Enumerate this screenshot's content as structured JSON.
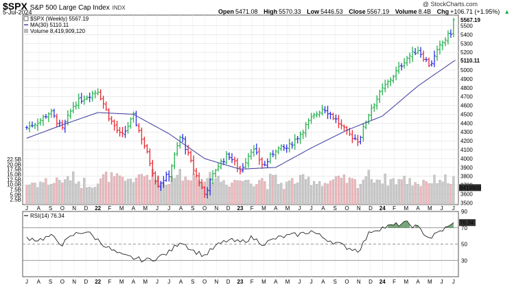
{
  "header": {
    "symbol": "$SPX",
    "name": "S&P 500 Large Cap Index",
    "exchange": "INDX",
    "date": "5-Jul-2024",
    "credit": "@ StockCharts.com",
    "open_label": "Open",
    "open": "5471.08",
    "high_label": "High",
    "high": "5570.33",
    "low_label": "Low",
    "low": "5446.53",
    "close_label": "Close",
    "close": "5567.19",
    "volume_label": "Volume",
    "volume": "8.4B",
    "chg_label": "Chg",
    "chg": "+106.71 (+1.95%)",
    "up_icon": "up-triangle-icon"
  },
  "legend": {
    "price": "$SPX (Weekly) 5567.19",
    "ma": "MA(30) 5110.11",
    "volume": "Volume 8,419,909,120",
    "rsi": "RSI(14) 76.34"
  },
  "colors": {
    "up": "#22b14c",
    "down": "#e8262f",
    "neutral": "#2a2ae6",
    "ma": "#4a47a3",
    "volume_up": "#c9c9c9",
    "volume_down": "#f0b8bd",
    "rsi_fill": "#4c8a4c",
    "close_tag": "#000000",
    "ma_tag": "#4a47a3"
  },
  "chart_data": [
    {
      "type": "bar",
      "subtype": "ohlc-weekly",
      "title": "$SPX (Weekly) 5567.19",
      "ylim": [
        3480,
        5620
      ],
      "price_ticks": [
        3500,
        3600,
        3700,
        3800,
        3900,
        4000,
        4100,
        4200,
        4300,
        4400,
        4500,
        4600,
        4700,
        4800,
        4900,
        5000,
        5100,
        5200,
        5300,
        5400,
        5500
      ],
      "volume_ticks": [
        "2.5B",
        "5.0B",
        "7.5B",
        "10.0B",
        "12.5B",
        "15.0B",
        "17.5B",
        "20.0B",
        "22.5B"
      ],
      "x_labels": [
        "J",
        "A",
        "S",
        "O",
        "N",
        "D",
        "22",
        "F",
        "M",
        "A",
        "M",
        "J",
        "J",
        "A",
        "S",
        "O",
        "N",
        "D",
        "23",
        "F",
        "M",
        "A",
        "M",
        "J",
        "J",
        "A",
        "S",
        "O",
        "N",
        "D",
        "24",
        "F",
        "M",
        "A",
        "M",
        "J",
        "J"
      ],
      "close_path": [
        [
          "2021-07",
          4350
        ],
        [
          "2021-08",
          4420
        ],
        [
          "2021-09",
          4530
        ],
        [
          "2021-10",
          4330
        ],
        [
          "2021-11",
          4620
        ],
        [
          "2021-12",
          4700
        ],
        [
          "2022-01",
          4770
        ],
        [
          "2022-02",
          4450
        ],
        [
          "2022-03",
          4240
        ],
        [
          "2022-04",
          4480
        ],
        [
          "2022-05",
          4120
        ],
        [
          "2022-06",
          3700
        ],
        [
          "2022-07",
          3820
        ],
        [
          "2022-08",
          4270
        ],
        [
          "2022-09",
          3900
        ],
        [
          "2022-10",
          3600
        ],
        [
          "2022-11",
          3900
        ],
        [
          "2022-12",
          4050
        ],
        [
          "2023-01",
          3860
        ],
        [
          "2023-02",
          4120
        ],
        [
          "2023-03",
          3910
        ],
        [
          "2023-04",
          4110
        ],
        [
          "2023-05",
          4120
        ],
        [
          "2023-06",
          4270
        ],
        [
          "2023-07",
          4450
        ],
        [
          "2023-08",
          4580
        ],
        [
          "2023-09",
          4450
        ],
        [
          "2023-10",
          4290
        ],
        [
          "2023-11",
          4200
        ],
        [
          "2023-12",
          4560
        ],
        [
          "2024-01",
          4780
        ],
        [
          "2024-02",
          4950
        ],
        [
          "2024-03",
          5130
        ],
        [
          "2024-04",
          5230
        ],
        [
          "2024-05",
          5050
        ],
        [
          "2024-06",
          5300
        ],
        [
          "2024-07",
          5460
        ],
        [
          "2024-07-05",
          5567.19
        ]
      ],
      "ma_label": "MA(30) 5110.11",
      "ma_path": [
        [
          "2021-07",
          4230
        ],
        [
          "2021-10",
          4380
        ],
        [
          "2022-01",
          4520
        ],
        [
          "2022-04",
          4500
        ],
        [
          "2022-07",
          4280
        ],
        [
          "2022-10",
          4000
        ],
        [
          "2023-01",
          3880
        ],
        [
          "2023-04",
          3900
        ],
        [
          "2023-07",
          4120
        ],
        [
          "2023-10",
          4320
        ],
        [
          "2024-01",
          4480
        ],
        [
          "2024-04",
          4820
        ],
        [
          "2024-07-05",
          5110.11
        ]
      ],
      "close_tag": "5567.19",
      "ma_tag": "5110.11",
      "volume_tag": "8419909"
    },
    {
      "type": "line",
      "title": "RSI(14) 76.34",
      "ylim": [
        10,
        90
      ],
      "ticks": [
        30,
        50,
        70,
        90
      ],
      "reference_lines": [
        30,
        50,
        70
      ],
      "last_value": "76.34",
      "path": [
        [
          "2021-07",
          58
        ],
        [
          "2021-08",
          55
        ],
        [
          "2021-09",
          60
        ],
        [
          "2021-10",
          50
        ],
        [
          "2021-11",
          62
        ],
        [
          "2021-12",
          66
        ],
        [
          "2022-01",
          55
        ],
        [
          "2022-02",
          44
        ],
        [
          "2022-03",
          36
        ],
        [
          "2022-04",
          33
        ],
        [
          "2022-05",
          30
        ],
        [
          "2022-06",
          33
        ],
        [
          "2022-07",
          40
        ],
        [
          "2022-08",
          54
        ],
        [
          "2022-09",
          42
        ],
        [
          "2022-10",
          36
        ],
        [
          "2022-11",
          48
        ],
        [
          "2022-12",
          55
        ],
        [
          "2023-01",
          52
        ],
        [
          "2023-02",
          58
        ],
        [
          "2023-03",
          50
        ],
        [
          "2023-04",
          57
        ],
        [
          "2023-05",
          60
        ],
        [
          "2023-06",
          62
        ],
        [
          "2023-07",
          66
        ],
        [
          "2023-08",
          58
        ],
        [
          "2023-09",
          52
        ],
        [
          "2023-10",
          46
        ],
        [
          "2023-11",
          42
        ],
        [
          "2023-12",
          66
        ],
        [
          "2024-01",
          70
        ],
        [
          "2024-02",
          73
        ],
        [
          "2024-03",
          76
        ],
        [
          "2024-04",
          70
        ],
        [
          "2024-05",
          57
        ],
        [
          "2024-06",
          67
        ],
        [
          "2024-07",
          74
        ],
        [
          "2024-07-05",
          76.34
        ]
      ]
    }
  ]
}
